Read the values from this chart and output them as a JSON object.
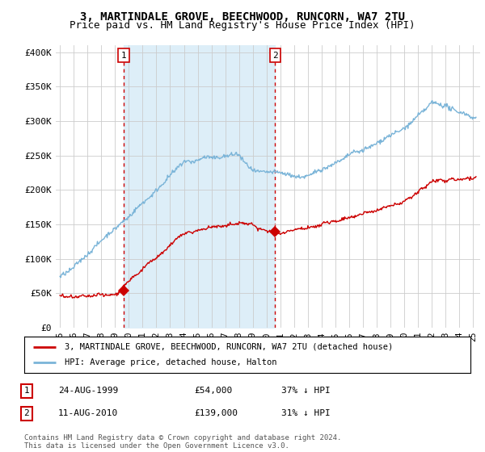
{
  "title": "3, MARTINDALE GROVE, BEECHWOOD, RUNCORN, WA7 2TU",
  "subtitle": "Price paid vs. HM Land Registry's House Price Index (HPI)",
  "title_fontsize": 10,
  "subtitle_fontsize": 9,
  "ylabel_ticks": [
    "£0",
    "£50K",
    "£100K",
    "£150K",
    "£200K",
    "£250K",
    "£300K",
    "£350K",
    "£400K"
  ],
  "ytick_values": [
    0,
    50000,
    100000,
    150000,
    200000,
    250000,
    300000,
    350000,
    400000
  ],
  "ylim": [
    0,
    410000
  ],
  "xlim_start": 1994.7,
  "xlim_end": 2025.5,
  "hpi_color": "#7ab4d8",
  "hpi_shade_color": "#ddeef8",
  "sale_color": "#cc0000",
  "purchase1_year": 1999.64,
  "purchase1_price": 54000,
  "purchase2_year": 2010.62,
  "purchase2_price": 139000,
  "legend_label1": "3, MARTINDALE GROVE, BEECHWOOD, RUNCORN, WA7 2TU (detached house)",
  "legend_label2": "HPI: Average price, detached house, Halton",
  "table_row1": [
    "1",
    "24-AUG-1999",
    "£54,000",
    "37% ↓ HPI"
  ],
  "table_row2": [
    "2",
    "11-AUG-2010",
    "£139,000",
    "31% ↓ HPI"
  ],
  "footnote": "Contains HM Land Registry data © Crown copyright and database right 2024.\nThis data is licensed under the Open Government Licence v3.0.",
  "background_color": "#ffffff",
  "grid_color": "#cccccc"
}
